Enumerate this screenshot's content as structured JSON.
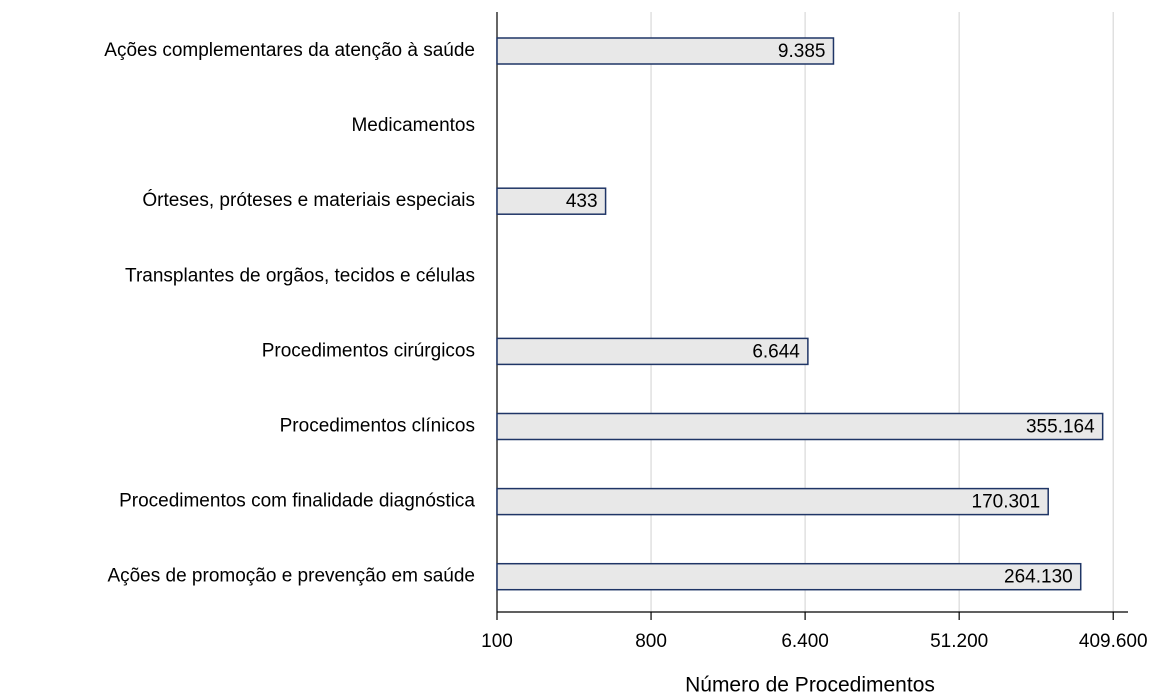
{
  "chart_data": {
    "type": "bar",
    "orientation": "horizontal",
    "x_label": "Número de Procedimentos",
    "categories": [
      "Ações complementares da atenção à saúde",
      "Medicamentos",
      "Órteses, próteses e materiais especiais",
      "Transplantes de orgãos, tecidos e células",
      "Procedimentos cirúrgicos",
      "Procedimentos clínicos",
      "Procedimentos com finalidade diagnóstica",
      "Ações de promoção e prevenção em saúde"
    ],
    "values": [
      9385,
      null,
      433,
      null,
      6644,
      355164,
      170301,
      264130
    ],
    "value_labels": [
      "9.385",
      null,
      "433",
      null,
      "6.644",
      "355.164",
      "170.301",
      "264.130"
    ],
    "color": "#e8e8e8",
    "edge_color": "#1f3566",
    "xscale": "log",
    "xlim": [
      100,
      500000
    ],
    "xticks": [
      100,
      800,
      {
        "value": 6400,
        "label": "6.400"
      },
      {
        "value": 51200,
        "label": "51.200"
      },
      {
        "value": 409600,
        "label": "409.600"
      }
    ],
    "grid": true
  }
}
